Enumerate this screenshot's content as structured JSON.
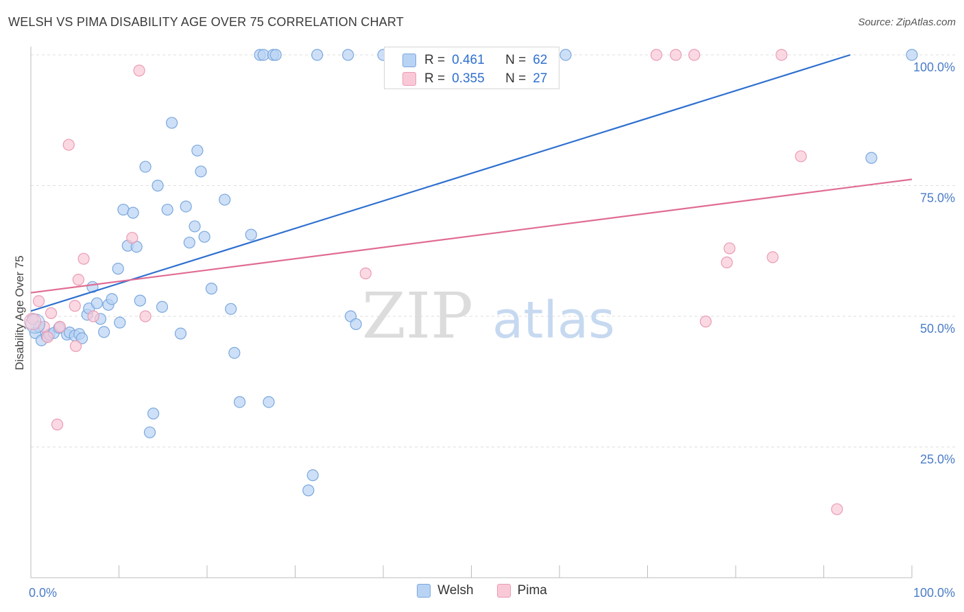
{
  "title": "WELSH VS PIMA DISABILITY AGE OVER 75 CORRELATION CHART",
  "source": "Source: ZipAtlas.com",
  "watermark": {
    "zip": "ZIP",
    "atlas": "atlas"
  },
  "stats_box": [
    {
      "series": "Welsh",
      "r_label": "R = ",
      "r_value": "0.461",
      "n_label": "N = ",
      "n_value": "62"
    },
    {
      "series": "Pima",
      "r_label": "R = ",
      "r_value": "0.355",
      "n_label": "N = ",
      "n_value": "27"
    }
  ],
  "legend": [
    {
      "name": "Welsh",
      "color": "#7aa7de"
    },
    {
      "name": "Pima",
      "color": "#ea9bb3"
    }
  ],
  "chart_data": {
    "type": "scatter",
    "title": "WELSH VS PIMA DISABILITY AGE OVER 75 CORRELATION CHART",
    "xlabel": "",
    "ylabel": "Disability Age Over 75",
    "xlim": [
      0,
      100
    ],
    "ylim": [
      0,
      100
    ],
    "x_tick_labels": [
      "0.0%",
      "100.0%"
    ],
    "y_ticks": [
      25,
      50,
      75,
      100
    ],
    "y_tick_labels": [
      "25.0%",
      "50.0%",
      "75.0%",
      "100.0%"
    ],
    "grid": true,
    "series": [
      {
        "name": "Welsh",
        "color": "#7aa7de",
        "fill": "#b9d3f4",
        "trend_color": "#2d6fcf",
        "trend": {
          "x0": 0,
          "y0": 51.0,
          "x1": 93.0,
          "y1": 100.0
        },
        "points": [
          [
            0.5,
            46.8
          ],
          [
            0.9,
            48.0
          ],
          [
            1.2,
            45.4
          ],
          [
            1.8,
            46.2
          ],
          [
            2.1,
            46.5
          ],
          [
            2.6,
            46.8
          ],
          [
            3.2,
            47.8
          ],
          [
            4.1,
            46.5
          ],
          [
            4.4,
            46.9
          ],
          [
            5.0,
            46.3
          ],
          [
            5.5,
            46.6
          ],
          [
            5.8,
            45.8
          ],
          [
            6.4,
            50.3
          ],
          [
            6.6,
            51.5
          ],
          [
            7.0,
            55.6
          ],
          [
            7.5,
            52.5
          ],
          [
            7.9,
            49.5
          ],
          [
            8.3,
            47.0
          ],
          [
            8.8,
            52.2
          ],
          [
            9.2,
            53.3
          ],
          [
            9.9,
            59.1
          ],
          [
            10.1,
            48.8
          ],
          [
            10.5,
            70.4
          ],
          [
            11.0,
            63.5
          ],
          [
            11.6,
            69.8
          ],
          [
            12.0,
            63.3
          ],
          [
            12.4,
            53.0
          ],
          [
            13.0,
            78.6
          ],
          [
            13.5,
            27.8
          ],
          [
            13.9,
            31.4
          ],
          [
            14.4,
            75.0
          ],
          [
            14.9,
            51.8
          ],
          [
            15.5,
            70.4
          ],
          [
            16.0,
            87.0
          ],
          [
            17.0,
            46.7
          ],
          [
            17.6,
            71.0
          ],
          [
            18.0,
            64.1
          ],
          [
            18.6,
            67.2
          ],
          [
            18.9,
            81.7
          ],
          [
            19.3,
            77.7
          ],
          [
            19.7,
            65.2
          ],
          [
            20.5,
            55.3
          ],
          [
            22.0,
            72.3
          ],
          [
            22.7,
            51.4
          ],
          [
            23.1,
            43.0
          ],
          [
            23.7,
            33.6
          ],
          [
            25.0,
            65.6
          ],
          [
            26.0,
            100.0
          ],
          [
            26.4,
            100.0
          ],
          [
            27.0,
            33.6
          ],
          [
            27.5,
            100.0
          ],
          [
            27.8,
            100.0
          ],
          [
            31.5,
            16.7
          ],
          [
            32.0,
            19.6
          ],
          [
            32.5,
            100.0
          ],
          [
            36.0,
            100.0
          ],
          [
            36.3,
            50.0
          ],
          [
            36.9,
            48.5
          ],
          [
            40.0,
            100.0
          ],
          [
            60.7,
            100.0
          ],
          [
            95.4,
            80.3
          ],
          [
            100.0,
            100.0
          ]
        ]
      },
      {
        "name": "Pima",
        "color": "#ea9bb3",
        "fill": "#f9c9d7",
        "trend_color": "#e06b93",
        "trend": {
          "x0": 0,
          "y0": 54.5,
          "x1": 100,
          "y1": 76.2
        },
        "points": [
          [
            0.2,
            49.5
          ],
          [
            0.9,
            52.9
          ],
          [
            1.5,
            48.0
          ],
          [
            1.9,
            46.0
          ],
          [
            2.3,
            50.6
          ],
          [
            3.3,
            48.0
          ],
          [
            4.3,
            82.8
          ],
          [
            5.1,
            44.3
          ],
          [
            5.4,
            57.0
          ],
          [
            6.0,
            61.0
          ],
          [
            7.1,
            50.0
          ],
          [
            3.0,
            29.3
          ],
          [
            12.3,
            97.0
          ],
          [
            11.5,
            65.0
          ],
          [
            13.0,
            50.0
          ],
          [
            38.0,
            58.2
          ],
          [
            5.0,
            52.0
          ],
          [
            71.0,
            100.0
          ],
          [
            73.2,
            100.0
          ],
          [
            75.3,
            100.0
          ],
          [
            76.6,
            49.0
          ],
          [
            79.0,
            60.3
          ],
          [
            79.3,
            63.0
          ],
          [
            84.2,
            61.3
          ],
          [
            85.2,
            100.0
          ],
          [
            87.4,
            80.6
          ],
          [
            91.5,
            13.1
          ]
        ]
      }
    ]
  }
}
